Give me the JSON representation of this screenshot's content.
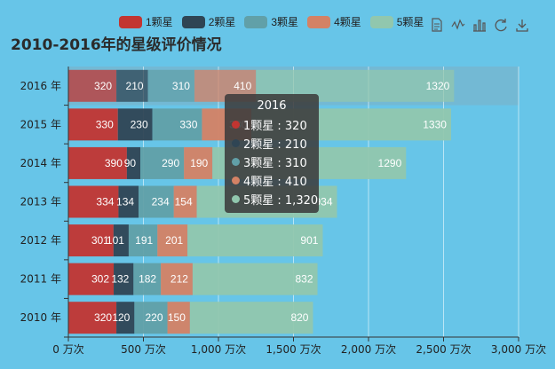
{
  "title": "2010-2016年的星级评价情况",
  "toolbox": [
    {
      "name": "data-view-icon",
      "glyph": "doc"
    },
    {
      "name": "line-chart-icon",
      "glyph": "line"
    },
    {
      "name": "bar-chart-icon",
      "glyph": "bar"
    },
    {
      "name": "restore-icon",
      "glyph": "restore"
    },
    {
      "name": "save-image-icon",
      "glyph": "save"
    }
  ],
  "tooltip": {
    "title": "2016",
    "rows": [
      {
        "label": "1颗星 : 320",
        "color": "#c23531"
      },
      {
        "label": "2颗星 : 210",
        "color": "#2f4554"
      },
      {
        "label": "3颗星 : 310",
        "color": "#61a0a8"
      },
      {
        "label": "4颗星 : 410",
        "color": "#d48265"
      },
      {
        "label": "5颗星 : 1,320",
        "color": "#91c7ae"
      }
    ]
  },
  "chart_data": {
    "type": "bar",
    "orientation": "horizontal",
    "stacked": true,
    "title": "2010-2016年的星级评价情况",
    "categories": [
      "2010 年",
      "2011 年",
      "2012 年",
      "2013 年",
      "2014 年",
      "2015 年",
      "2016 年"
    ],
    "xlim": [
      0,
      3000
    ],
    "x_ticks": [
      "0 万次",
      "500 万次",
      "1,000 万次",
      "1,500 万次",
      "2,000 万次",
      "2,500 万次",
      "3,000 万次"
    ],
    "grid": true,
    "legend_position": "top",
    "highlighted_category": "2016 年",
    "series": [
      {
        "name": "1颗星",
        "color": "#c23531",
        "values": [
          320,
          302,
          301,
          334,
          390,
          330,
          320
        ]
      },
      {
        "name": "2颗星",
        "color": "#2f4554",
        "values": [
          120,
          132,
          101,
          134,
          90,
          230,
          210
        ]
      },
      {
        "name": "3颗星",
        "color": "#61a0a8",
        "values": [
          220,
          182,
          191,
          234,
          290,
          330,
          310
        ]
      },
      {
        "name": "4颗星",
        "color": "#d48265",
        "values": [
          150,
          212,
          201,
          154,
          190,
          330,
          410
        ]
      },
      {
        "name": "5颗星",
        "color": "#91c7ae",
        "values": [
          820,
          832,
          901,
          934,
          1290,
          1330,
          1320
        ]
      }
    ]
  }
}
